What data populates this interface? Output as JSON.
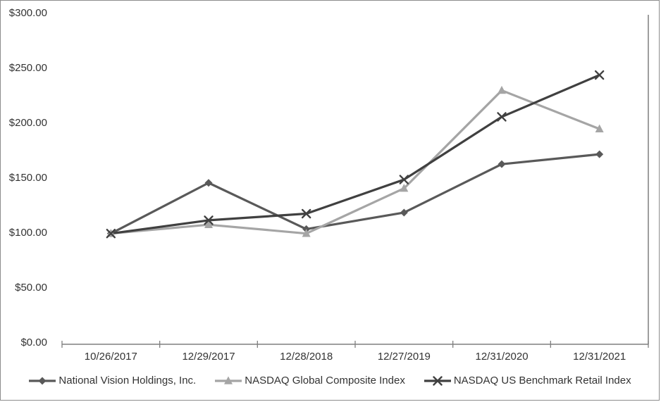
{
  "chart_data": {
    "type": "line",
    "x": [
      "10/26/2017",
      "12/29/2017",
      "12/28/2018",
      "12/27/2019",
      "12/31/2020",
      "12/31/2021"
    ],
    "series": [
      {
        "name": "National Vision Holdings, Inc.",
        "marker": "diamond",
        "color": "#595959",
        "values": [
          100,
          146,
          104,
          119,
          163,
          172
        ]
      },
      {
        "name": "NASDAQ Global Composite Index",
        "marker": "triangle",
        "color": "#a5a5a5",
        "values": [
          100,
          108,
          100,
          141,
          230,
          195
        ]
      },
      {
        "name": "NASDAQ US Benchmark Retail Index",
        "marker": "x",
        "color": "#404040",
        "values": [
          100,
          112,
          118,
          149,
          206,
          244
        ]
      }
    ],
    "ylim": [
      0,
      300
    ],
    "ytick_step": 50,
    "ytick_labels": [
      "$0.00",
      "$50.00",
      "$100.00",
      "$150.00",
      "$200.00",
      "$250.00",
      "$300.00"
    ],
    "xlabel": "",
    "ylabel": "",
    "title": "",
    "grid": false,
    "legend_position": "bottom"
  },
  "colors": {
    "background": "#ffffff",
    "frame_border": "#8c8c8c",
    "axis": "#7f7f7f",
    "text": "#333333"
  }
}
